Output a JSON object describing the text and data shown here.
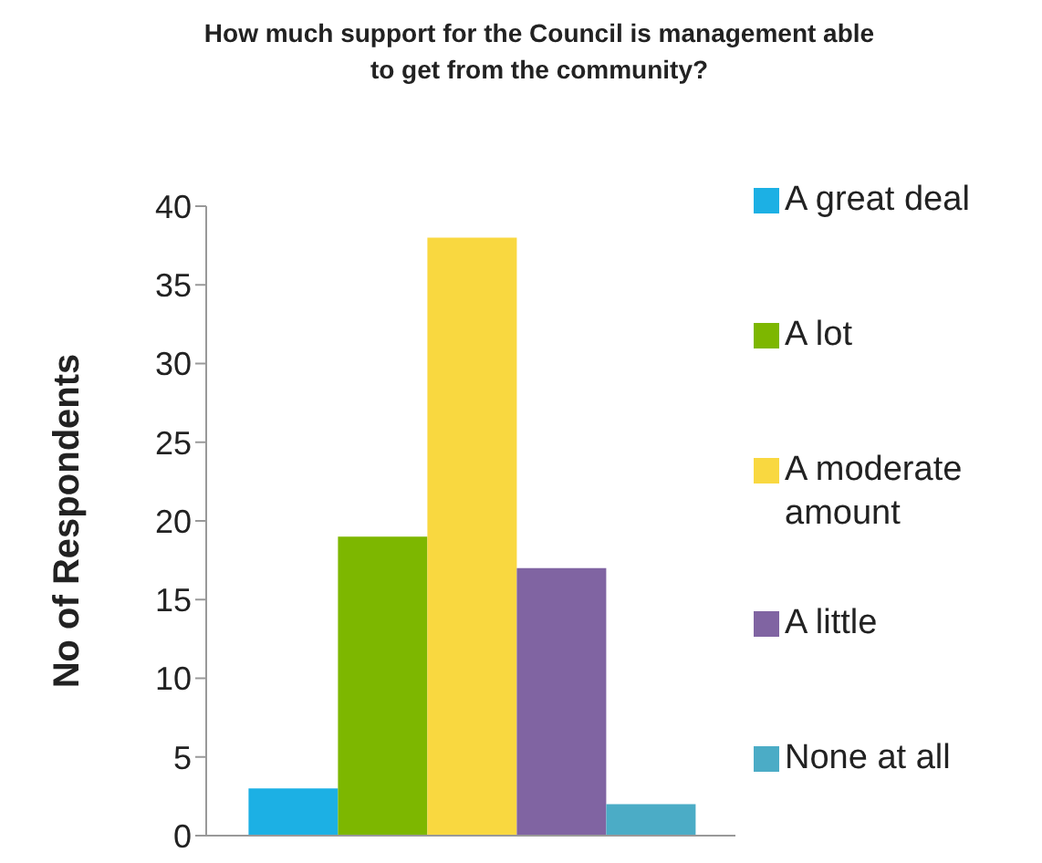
{
  "chart_data": {
    "type": "bar",
    "title": "How much support for the Council is management able to get from the community?",
    "ylabel": "No of Respondents",
    "categories": [
      null
    ],
    "series": [
      {
        "name": "A great deal",
        "color": "#1cb0e4",
        "values": [
          3
        ]
      },
      {
        "name": "A lot",
        "color": "#7db700",
        "values": [
          19
        ]
      },
      {
        "name": "A moderate amount",
        "color": "#f9d840",
        "values": [
          38
        ]
      },
      {
        "name": "A little",
        "color": "#8064a2",
        "values": [
          17
        ]
      },
      {
        "name": "None at all",
        "color": "#4bacc6",
        "values": [
          2
        ]
      }
    ],
    "ylim": [
      0,
      40
    ],
    "yticks": [
      0,
      5,
      10,
      15,
      20,
      25,
      30,
      35,
      40
    ],
    "legend": "right"
  }
}
